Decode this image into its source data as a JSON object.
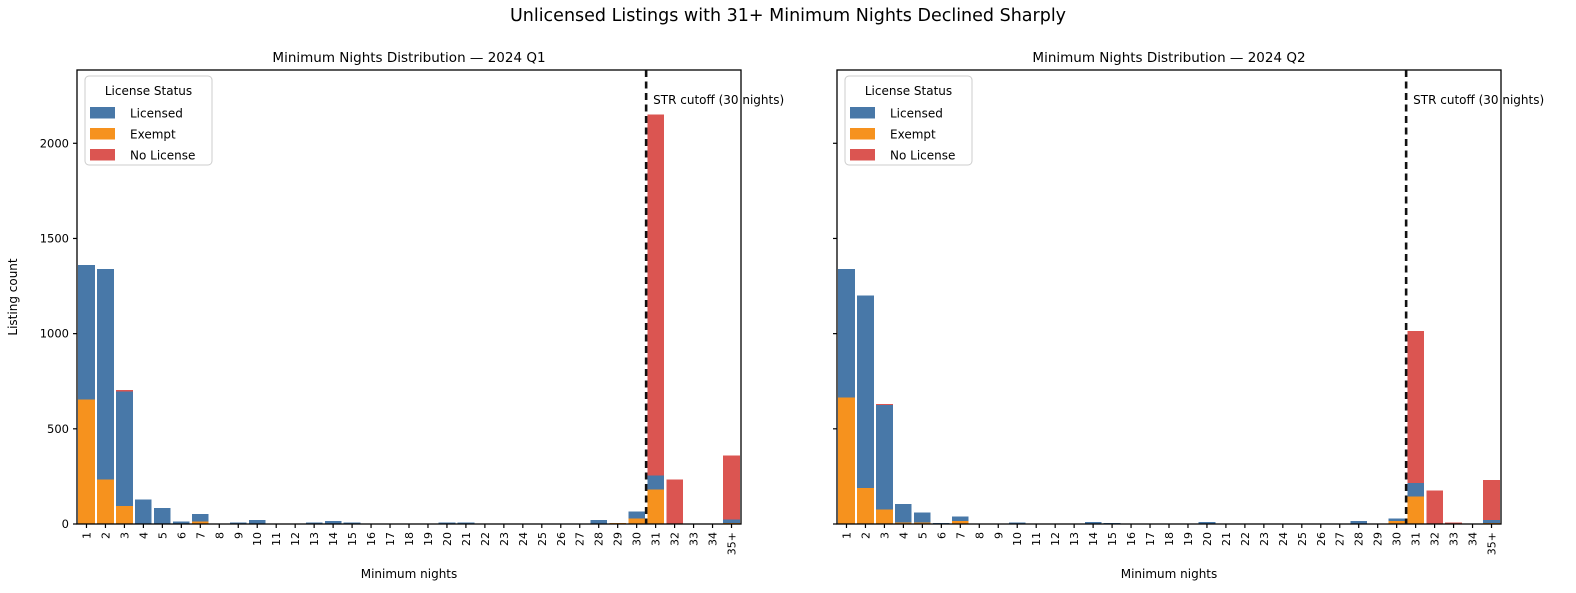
{
  "suptitle": "Unlicensed Listings with 31+ Minimum Nights Declined Sharply",
  "legend": {
    "title": "License Status",
    "entries": [
      {
        "label": "Licensed",
        "color": "#4878A8"
      },
      {
        "label": "Exempt",
        "color": "#F6921E"
      },
      {
        "label": "No License",
        "color": "#DB5551"
      }
    ]
  },
  "chart_data": [
    {
      "id": "chart-2024-q1",
      "type": "bar",
      "stacked": true,
      "title": "Minimum Nights Distribution — 2024 Q1",
      "xlabel": "Minimum nights",
      "ylabel": "Listing count",
      "legend_position": "upper left",
      "grid": false,
      "categories": [
        "1",
        "2",
        "3",
        "4",
        "5",
        "6",
        "7",
        "8",
        "9",
        "10",
        "11",
        "12",
        "13",
        "14",
        "15",
        "16",
        "17",
        "18",
        "19",
        "20",
        "21",
        "22",
        "23",
        "24",
        "25",
        "26",
        "27",
        "28",
        "29",
        "30",
        "31",
        "32",
        "33",
        "34",
        "35+"
      ],
      "stack_order": [
        "Exempt",
        "Licensed",
        "No License"
      ],
      "series": [
        {
          "name": "Licensed",
          "color": "#4878A8",
          "values": [
            705,
            1105,
            600,
            130,
            85,
            12,
            41,
            0,
            8,
            22,
            0,
            0,
            8,
            15,
            8,
            0,
            0,
            0,
            0,
            8,
            8,
            0,
            0,
            0,
            0,
            0,
            0,
            20,
            0,
            38,
            75,
            0,
            0,
            0,
            18
          ]
        },
        {
          "name": "Exempt",
          "color": "#F6921E",
          "values": [
            655,
            235,
            95,
            0,
            0,
            0,
            12,
            0,
            0,
            0,
            0,
            0,
            0,
            0,
            0,
            0,
            0,
            0,
            0,
            0,
            0,
            0,
            0,
            0,
            0,
            0,
            0,
            0,
            6,
            28,
            180,
            0,
            0,
            0,
            5
          ]
        },
        {
          "name": "No License",
          "color": "#DB5551",
          "values": [
            0,
            0,
            8,
            0,
            0,
            0,
            0,
            0,
            0,
            0,
            0,
            0,
            0,
            0,
            0,
            0,
            0,
            0,
            0,
            0,
            0,
            0,
            0,
            0,
            0,
            0,
            0,
            0,
            0,
            0,
            1895,
            235,
            0,
            0,
            337
          ]
        }
      ],
      "yticks": [
        0,
        500,
        1000,
        1500,
        2000
      ],
      "ylim": [
        0,
        2385
      ],
      "show_ytick_labels": true,
      "cutoff": {
        "after_category": "30",
        "label": "STR cutoff (30 nights)"
      }
    },
    {
      "id": "chart-2024-q2",
      "type": "bar",
      "stacked": true,
      "title": "Minimum Nights Distribution — 2024 Q2",
      "xlabel": "Minimum nights",
      "ylabel": "",
      "legend_position": "upper left",
      "grid": false,
      "categories": [
        "1",
        "2",
        "3",
        "4",
        "5",
        "6",
        "7",
        "8",
        "9",
        "10",
        "11",
        "12",
        "13",
        "14",
        "15",
        "16",
        "17",
        "18",
        "19",
        "20",
        "21",
        "22",
        "23",
        "24",
        "25",
        "26",
        "27",
        "28",
        "29",
        "30",
        "31",
        "32",
        "33",
        "34",
        "35+"
      ],
      "stack_order": [
        "Exempt",
        "Licensed",
        "No License"
      ],
      "series": [
        {
          "name": "Licensed",
          "color": "#4878A8",
          "values": [
            675,
            1010,
            550,
            97,
            52,
            5,
            25,
            0,
            0,
            8,
            0,
            0,
            0,
            10,
            6,
            0,
            0,
            0,
            0,
            10,
            0,
            0,
            0,
            0,
            0,
            0,
            0,
            15,
            0,
            15,
            70,
            0,
            0,
            0,
            15
          ]
        },
        {
          "name": "Exempt",
          "color": "#F6921E",
          "values": [
            665,
            190,
            75,
            9,
            8,
            0,
            15,
            0,
            0,
            0,
            0,
            0,
            0,
            0,
            0,
            0,
            0,
            0,
            0,
            0,
            0,
            0,
            0,
            0,
            0,
            0,
            0,
            0,
            0,
            15,
            145,
            0,
            0,
            0,
            5
          ]
        },
        {
          "name": "No License",
          "color": "#DB5551",
          "values": [
            0,
            0,
            5,
            0,
            0,
            0,
            0,
            0,
            0,
            0,
            0,
            0,
            0,
            0,
            0,
            0,
            0,
            0,
            0,
            0,
            0,
            0,
            0,
            0,
            0,
            0,
            0,
            0,
            0,
            0,
            800,
            175,
            8,
            0,
            210
          ]
        }
      ],
      "yticks": [
        0,
        500,
        1000,
        1500,
        2000
      ],
      "ylim": [
        0,
        2385
      ],
      "show_ytick_labels": false,
      "cutoff": {
        "after_category": "30",
        "label": "STR cutoff (30 nights)"
      }
    }
  ]
}
